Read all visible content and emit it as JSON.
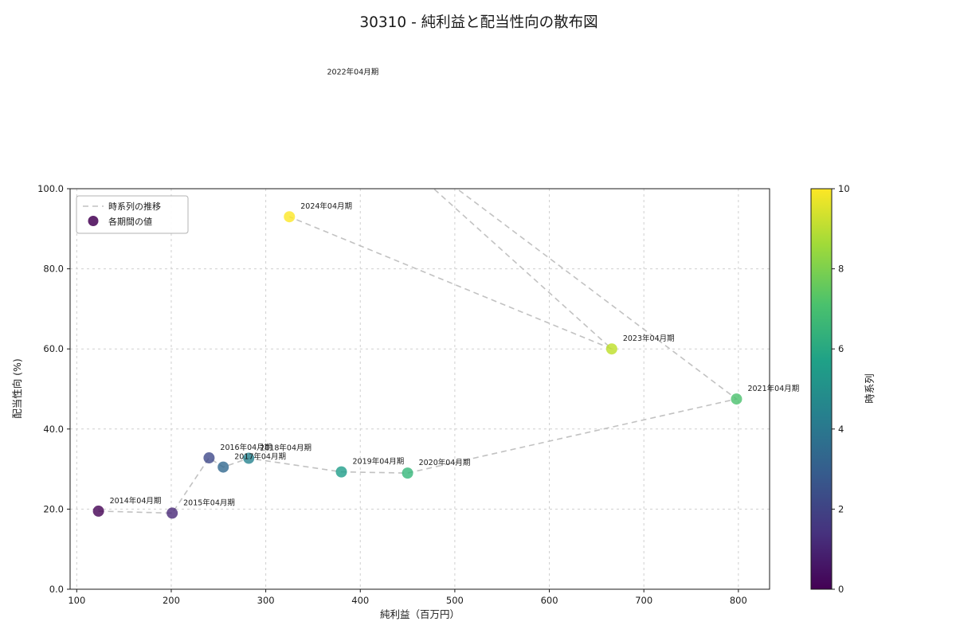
{
  "chart_data": {
    "type": "scatter",
    "title": "30310 - 純利益と配当性向の散布図",
    "xlabel": "純利益（百万円）",
    "ylabel": "配当性向 (%)",
    "xlim": [
      93,
      833
    ],
    "ylim": [
      0,
      100
    ],
    "xticks": [
      100,
      200,
      300,
      400,
      500,
      600,
      700,
      800
    ],
    "yticks": [
      0,
      20,
      40,
      60,
      80,
      100
    ],
    "ytick_decimals": 1,
    "grid": true,
    "trend_line": {
      "color": "#c2c2c2",
      "style": "dashed"
    },
    "legend": {
      "position": "upper left",
      "items": [
        {
          "type": "dashed-line",
          "label": "時系列の推移"
        },
        {
          "type": "marker",
          "label": "各期間の値"
        }
      ]
    },
    "colorbar": {
      "label": "時系列",
      "min": 0,
      "max": 10,
      "ticks": [
        0,
        2,
        4,
        6,
        8,
        10
      ],
      "colormap": "viridis",
      "gradient": [
        [
          "0%",
          "#440154"
        ],
        [
          "14%",
          "#46327e"
        ],
        [
          "29%",
          "#365c8d"
        ],
        [
          "43%",
          "#277f8e"
        ],
        [
          "57%",
          "#1fa187"
        ],
        [
          "71%",
          "#4ac16d"
        ],
        [
          "86%",
          "#a0da39"
        ],
        [
          "100%",
          "#fde725"
        ]
      ]
    },
    "points": [
      {
        "label": "2014年04月期",
        "x": 123,
        "y": 19.5,
        "t": 0,
        "color": "#440154"
      },
      {
        "label": "2015年04月期",
        "x": 201,
        "y": 19.0,
        "t": 1,
        "color": "#482878"
      },
      {
        "label": "2016年04月期",
        "x": 240,
        "y": 32.8,
        "t": 2,
        "color": "#3e4989"
      },
      {
        "label": "2017年04月期",
        "x": 255,
        "y": 30.5,
        "t": 3,
        "color": "#31688e"
      },
      {
        "label": "2018年04月期",
        "x": 282,
        "y": 32.7,
        "t": 4,
        "color": "#26828e"
      },
      {
        "label": "2019年04月期",
        "x": 380,
        "y": 29.3,
        "t": 5,
        "color": "#1f9e89"
      },
      {
        "label": "2020年04月期",
        "x": 450,
        "y": 29.0,
        "t": 6,
        "color": "#35b779"
      },
      {
        "label": "2021年04月期",
        "x": 798,
        "y": 47.5,
        "t": 7,
        "color": "#4ac16d"
      },
      {
        "label": "2022年04月期",
        "x": 353,
        "y": 126.5,
        "t": 8,
        "color": "#90d743",
        "off_plot": true
      },
      {
        "label": "2023年04月期",
        "x": 666,
        "y": 60.0,
        "t": 9,
        "color": "#bddf26"
      },
      {
        "label": "2024年04月期",
        "x": 325,
        "y": 93.0,
        "t": 10,
        "color": "#fde725"
      }
    ]
  }
}
